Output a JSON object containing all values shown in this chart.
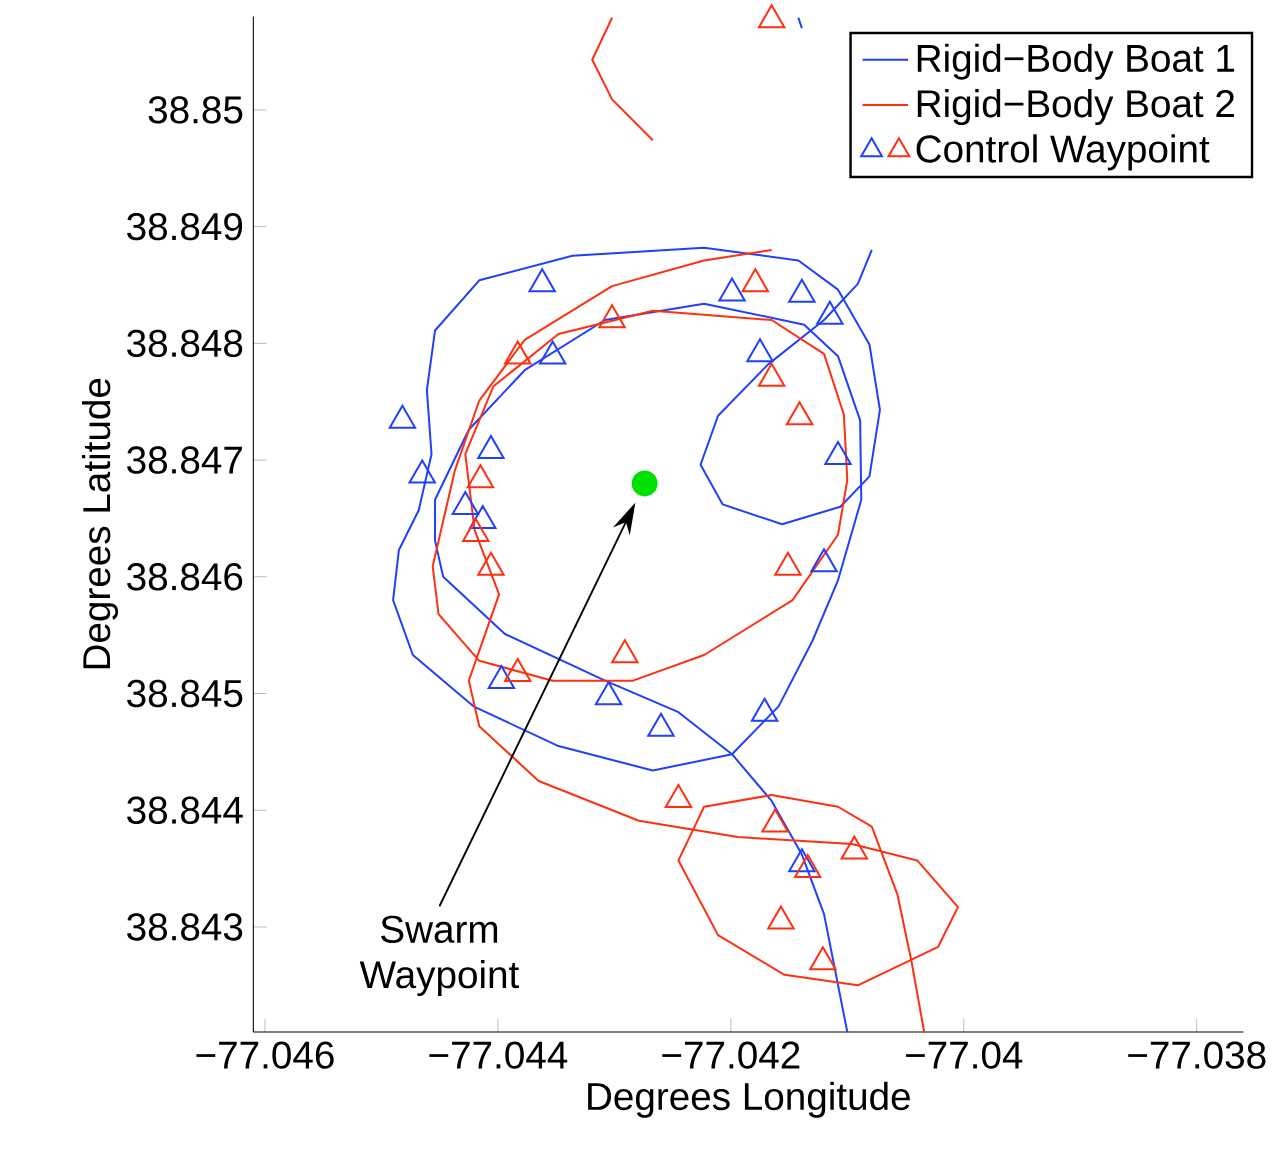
{
  "chart_data": {
    "type": "line",
    "xlabel": "Degrees Longitude",
    "ylabel": "Degrees Latitude",
    "xlim": [
      -77.0461,
      -77.0376
    ],
    "ylim": [
      38.8421,
      38.8508
    ],
    "xticks": [
      {
        "value": -77.046,
        "label": "−77.046"
      },
      {
        "value": -77.044,
        "label": "−77.044"
      },
      {
        "value": -77.042,
        "label": "−77.042"
      },
      {
        "value": -77.04,
        "label": "−77.04"
      },
      {
        "value": -77.038,
        "label": "−77.038"
      }
    ],
    "yticks": [
      38.843,
      38.844,
      38.845,
      38.846,
      38.847,
      38.848,
      38.849,
      38.85
    ],
    "grid": false,
    "legend": "top right",
    "annotations": [
      "Swarm Waypoint"
    ],
    "series": [
      {
        "name": "Rigid−Body Boat 1",
        "color": "#2040ff",
        "x": [
          -77.04142,
          -77.04139,
          -77.04108,
          -77.04079,
          -77.04091,
          -77.0412,
          -77.04168,
          -77.04211,
          -77.04226,
          -77.04207,
          -77.04156,
          -77.04106,
          -77.04081,
          -77.04072,
          -77.04081,
          -77.04108,
          -77.04142,
          -77.04223,
          -77.04336,
          -77.04416,
          -77.04454,
          -77.04461,
          -77.04457,
          -77.04468,
          -77.04485,
          -77.0449,
          -77.04473,
          -77.04421,
          -77.04348,
          -77.04267,
          -77.04199,
          -77.04159,
          -77.0413,
          -77.04108,
          -77.04088,
          -77.04089,
          -77.04108,
          -77.04137,
          -77.04223,
          -77.04308,
          -77.04377,
          -77.04425,
          -77.04454,
          -77.04454,
          -77.04447,
          -77.04394,
          -77.04308,
          -77.04245,
          -77.04199,
          -77.04165,
          -77.04139,
          -77.0412,
          -77.041
        ],
        "values": [
          38.85079,
          38.8507,
          null,
          38.8488,
          38.84851,
          38.8482,
          38.84782,
          38.84738,
          38.84696,
          38.84662,
          38.84645,
          38.8466,
          38.84686,
          38.84743,
          38.84799,
          38.84846,
          38.84871,
          38.84882,
          38.84875,
          38.84854,
          38.84811,
          38.8476,
          38.84705,
          38.84657,
          38.84623,
          38.8458,
          38.84533,
          38.84489,
          38.84455,
          38.84434,
          38.84448,
          38.84489,
          38.84545,
          38.84597,
          38.84666,
          38.84734,
          38.84789,
          38.84816,
          38.84834,
          38.8482,
          38.84777,
          38.84726,
          38.84666,
          38.84631,
          38.846,
          38.84551,
          38.84511,
          38.84484,
          38.84448,
          38.84408,
          38.84362,
          38.84311,
          38.8421
        ]
      },
      {
        "name": "Rigid−Body Boat 2",
        "color": "#ff3010",
        "x": [
          -77.04302,
          -77.04319,
          -77.04302,
          -77.04267,
          -77.04211,
          -77.04165,
          -77.04223,
          -77.04302,
          -77.04377,
          -77.04416,
          -77.04437,
          -77.04456,
          -77.04451,
          -77.04416,
          -77.04353,
          -77.04284,
          -77.04223,
          -77.04147,
          -77.04108,
          -77.041,
          -77.04103,
          -77.0412,
          -77.04165,
          -77.04267,
          -77.04348,
          -77.04404,
          -77.04428,
          -77.0442,
          -77.04399,
          -77.04425,
          -77.04416,
          -77.04365,
          -77.04279,
          -77.04194,
          -77.04096,
          -77.0404,
          -77.04005,
          -77.04022,
          -77.04091,
          -77.04154,
          -77.04211,
          -77.04245,
          -77.04223,
          -77.04165,
          -77.04108,
          -77.04079,
          -77.04057,
          -77.04045,
          -77.04034
        ],
        "values": [
          38.85079,
          38.85043,
          38.85009,
          38.84974,
          null,
          38.8488,
          38.84871,
          38.84849,
          38.84803,
          38.84751,
          38.84691,
          38.84609,
          38.84568,
          38.84528,
          38.84511,
          38.84511,
          38.84533,
          38.8458,
          38.84636,
          38.84683,
          38.84739,
          38.84791,
          38.8482,
          38.84828,
          38.84808,
          38.84763,
          38.84705,
          38.8464,
          38.84585,
          38.84511,
          38.84472,
          38.84425,
          38.84391,
          38.84377,
          38.84371,
          38.84357,
          38.84317,
          38.84283,
          38.8425,
          38.84259,
          38.84293,
          38.84357,
          38.84403,
          38.84413,
          38.84403,
          38.84386,
          38.84328,
          38.84271,
          38.8421
        ]
      },
      {
        "name": "Control Waypoint",
        "type": "scatter",
        "marker": "triangle",
        "x": [
          -77.04362,
          -77.04199,
          -77.04139,
          -77.04115,
          -77.04353,
          -77.04175,
          -77.04482,
          -77.04465,
          -77.04406,
          -77.04108,
          -77.04428,
          -77.04413,
          -77.0412,
          -77.04397,
          -77.04305,
          -77.0426,
          -77.04171,
          -77.04139,
          -77.04165,
          -77.04179,
          -77.04302,
          -77.04383,
          -77.04165,
          -77.04141,
          -77.04415,
          -77.04419,
          -77.04406,
          -77.04151,
          -77.04291,
          -77.04383,
          -77.04245,
          -77.04162,
          -77.04094,
          -77.04134,
          -77.04157,
          -77.04121
        ],
        "values": [
          38.84851,
          38.84843,
          38.84842,
          38.84823,
          38.84789,
          38.84791,
          38.84734,
          38.84687,
          38.84708,
          38.84703,
          38.8466,
          38.84648,
          38.84611,
          38.84511,
          38.84497,
          38.8447,
          38.84483,
          38.84354,
          38.85077,
          38.84851,
          38.8482,
          38.84789,
          38.8477,
          38.84737,
          38.84683,
          38.84637,
          38.84608,
          38.84608,
          38.84533,
          38.84517,
          38.84409,
          38.84388,
          38.84365,
          38.84349,
          38.84305,
          38.8427
        ],
        "colors": [
          "#2040ff",
          "#2040ff",
          "#2040ff",
          "#2040ff",
          "#2040ff",
          "#2040ff",
          "#2040ff",
          "#2040ff",
          "#2040ff",
          "#2040ff",
          "#2040ff",
          "#2040ff",
          "#2040ff",
          "#2040ff",
          "#2040ff",
          "#2040ff",
          "#2040ff",
          "#2040ff",
          "#ff3010",
          "#ff3010",
          "#ff3010",
          "#ff3010",
          "#ff3010",
          "#ff3010",
          "#ff3010",
          "#ff3010",
          "#ff3010",
          "#ff3010",
          "#ff3010",
          "#ff3010",
          "#ff3010",
          "#ff3010",
          "#ff3010",
          "#ff3010",
          "#ff3010",
          "#ff3010"
        ]
      },
      {
        "type": "scatter",
        "marker": "circle",
        "color": "#00e000",
        "x": [
          -77.04274
        ],
        "values": [
          38.8468
        ]
      }
    ]
  }
}
